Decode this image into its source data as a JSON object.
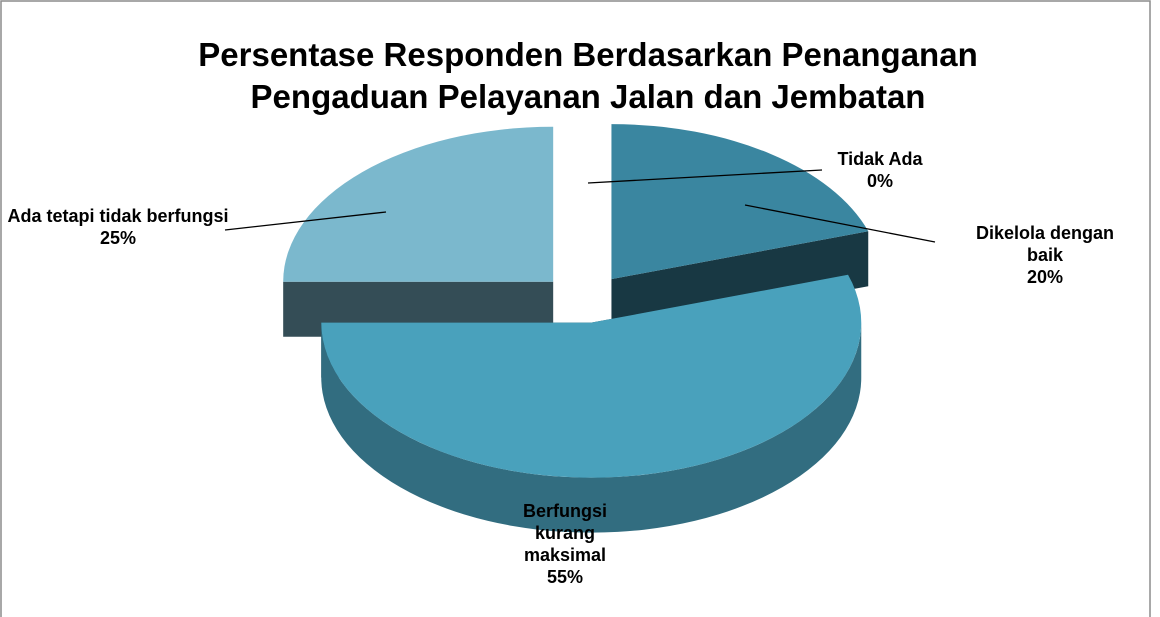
{
  "chart_data": {
    "type": "pie3d",
    "title": "Persentase Responden Berdasarkan Penanganan Pengaduan Pelayanan Jalan dan Jembatan",
    "categories": [
      "Tidak Ada",
      "Dikelola dengan baik",
      "Berfungsi kurang maksimal",
      "Ada tetapi tidak berfungsi"
    ],
    "values": [
      0,
      20,
      55,
      25
    ],
    "value_labels": [
      "0%",
      "20%",
      "55%",
      "25%"
    ],
    "colors": [
      "#2c6e85",
      "#3a86a0",
      "#49a1bc",
      "#7bb8cd"
    ]
  }
}
